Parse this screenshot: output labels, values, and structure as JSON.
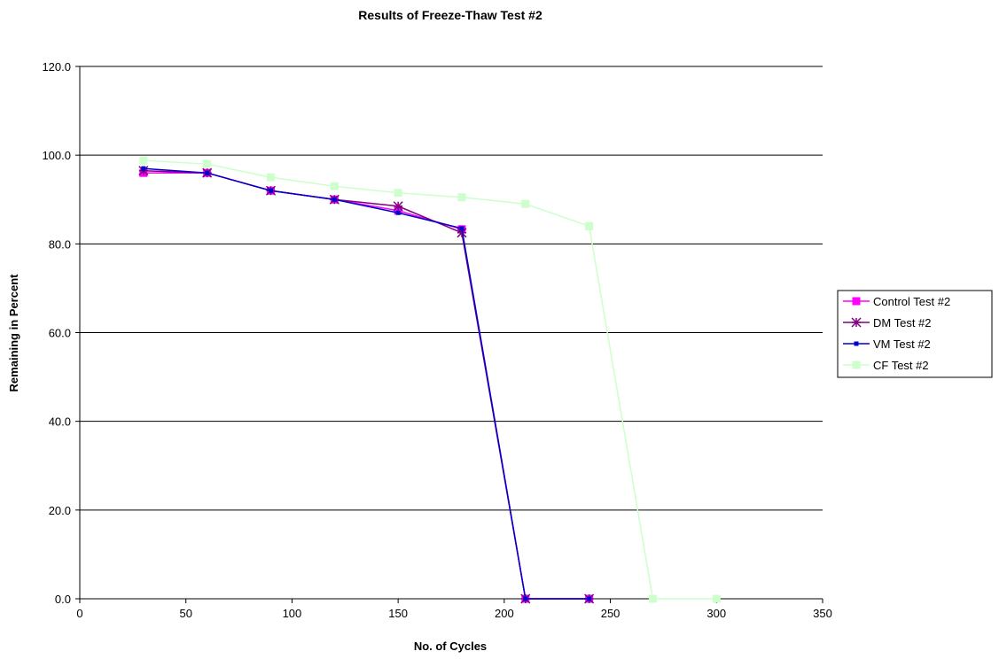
{
  "chart_data": {
    "type": "line",
    "title": "Results of Freeze-Thaw Test #2",
    "xlabel": "No. of Cycles",
    "ylabel": "Remaining in Percent",
    "xlim": [
      0,
      350
    ],
    "ylim": [
      0,
      120
    ],
    "x_ticks": [
      "0",
      "50",
      "100",
      "150",
      "200",
      "250",
      "300",
      "350"
    ],
    "y_ticks": [
      "0.0",
      "20.0",
      "40.0",
      "60.0",
      "80.0",
      "100.0",
      "120.0"
    ],
    "grid": "horizontal",
    "legend_position": "right",
    "series": [
      {
        "name": "Control Test #2",
        "color": "#ff00ff",
        "marker": "square",
        "x": [
          30,
          60,
          90,
          120,
          150,
          180,
          210,
          240
        ],
        "y": [
          96.0,
          96.0,
          92.0,
          90.0,
          87.5,
          83.3,
          0.0,
          0.0
        ]
      },
      {
        "name": "DM Test #2",
        "color": "#800080",
        "marker": "star",
        "x": [
          30,
          60,
          90,
          120,
          150,
          180,
          210,
          240
        ],
        "y": [
          96.5,
          96.0,
          92.0,
          90.0,
          88.5,
          82.5,
          0.0,
          0.0
        ]
      },
      {
        "name": "VM Test #2",
        "color": "#0000cc",
        "marker": "dot",
        "x": [
          30,
          60,
          90,
          120,
          150,
          180,
          210,
          240
        ],
        "y": [
          97.0,
          96.0,
          92.0,
          90.0,
          87.0,
          83.5,
          0.0,
          0.0
        ]
      },
      {
        "name": "CF Test #2",
        "color": "#ccffcc",
        "marker": "square",
        "x": [
          30,
          60,
          90,
          120,
          150,
          180,
          210,
          240,
          270,
          300
        ],
        "y": [
          98.8,
          98.0,
          95.0,
          93.0,
          91.5,
          90.5,
          89.0,
          84.0,
          0.0,
          0.0
        ]
      }
    ]
  }
}
